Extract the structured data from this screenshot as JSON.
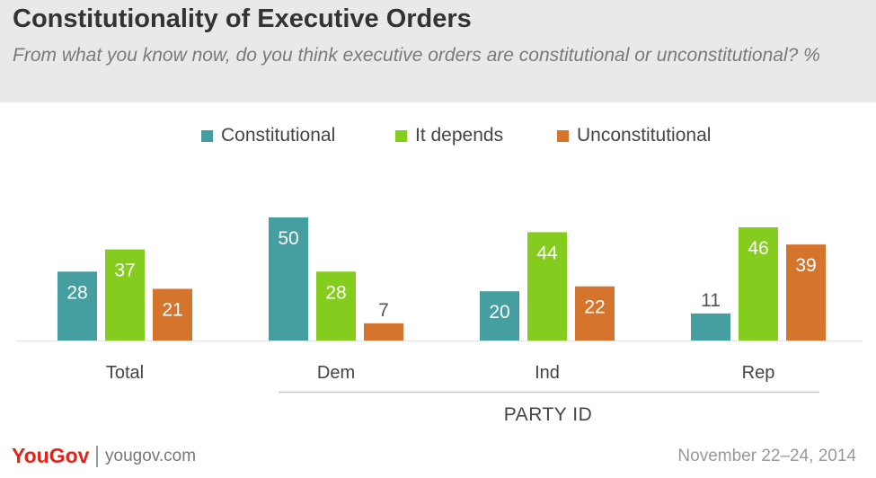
{
  "header": {
    "title": "Constitutionality of Executive Orders",
    "subtitle": "From what you know now, do you think executive orders are constitutional or unconstitutional? %"
  },
  "legend": [
    {
      "label": "Constitutional",
      "color": "#459e9f"
    },
    {
      "label": "It depends",
      "color": "#84cc1d"
    },
    {
      "label": "Unconstitutional",
      "color": "#d5742c"
    }
  ],
  "chart_data": {
    "type": "bar",
    "categories": [
      "Total",
      "Dem",
      "Ind",
      "Rep"
    ],
    "series": [
      {
        "name": "Constitutional",
        "values": [
          28,
          50,
          20,
          11
        ],
        "color": "#459e9f"
      },
      {
        "name": "It depends",
        "values": [
          37,
          28,
          44,
          46
        ],
        "color": "#84cc1d"
      },
      {
        "name": "Unconstitutional",
        "values": [
          21,
          7,
          22,
          39
        ],
        "color": "#d5742c"
      }
    ],
    "group_label": "PARTY ID",
    "ylim": [
      0,
      50
    ],
    "grid": false,
    "legend_position": "top"
  },
  "footer": {
    "brand": "YouGov",
    "url": "yougov.com",
    "date": "November 22–24, 2014"
  }
}
